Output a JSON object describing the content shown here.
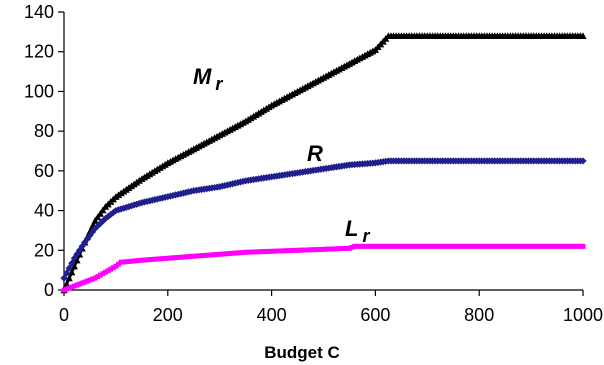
{
  "chart_data": {
    "type": "line",
    "title": "",
    "xlabel": "Budget C",
    "ylabel": "",
    "xlim": [
      0,
      1000
    ],
    "ylim": [
      0,
      140
    ],
    "xticks": [
      0,
      200,
      400,
      600,
      800,
      1000
    ],
    "yticks": [
      0,
      20,
      40,
      60,
      80,
      100,
      120,
      140
    ],
    "grid": false,
    "legend": "none",
    "series": [
      {
        "name": "M_r",
        "label_main": "M",
        "label_sub": "r",
        "color": "#000000",
        "marker": "triangle",
        "x": [
          0,
          20,
          40,
          60,
          80,
          100,
          150,
          200,
          250,
          300,
          350,
          400,
          450,
          500,
          550,
          600,
          625,
          650,
          700,
          800,
          900,
          1000
        ],
        "y": [
          0,
          12,
          24,
          35,
          42,
          47,
          56,
          64,
          71,
          78,
          85,
          93,
          100,
          107,
          114,
          121,
          128,
          128,
          128,
          128,
          128,
          128
        ]
      },
      {
        "name": "R",
        "label_main": "R",
        "label_sub": "",
        "color": "#1f1f8f",
        "marker": "diamond",
        "x": [
          0,
          20,
          40,
          60,
          80,
          100,
          150,
          200,
          250,
          300,
          350,
          400,
          450,
          500,
          550,
          600,
          625,
          650,
          700,
          800,
          900,
          1000
        ],
        "y": [
          6,
          16,
          24,
          31,
          36,
          40,
          44,
          47,
          50,
          52,
          55,
          57,
          59,
          61,
          63,
          64,
          65,
          65,
          65,
          65,
          65,
          65
        ]
      },
      {
        "name": "L_r",
        "label_main": "L",
        "label_sub": "r",
        "color": "#ff00ff",
        "marker": "square",
        "x": [
          0,
          20,
          40,
          60,
          80,
          100,
          110,
          150,
          200,
          250,
          300,
          350,
          400,
          450,
          500,
          550,
          560,
          600,
          700,
          800,
          900,
          1000
        ],
        "y": [
          0,
          2,
          4,
          6,
          9,
          12,
          14,
          15,
          16,
          17,
          18,
          19,
          19.5,
          20,
          20.5,
          21,
          22,
          22,
          22,
          22,
          22,
          22
        ]
      }
    ]
  }
}
